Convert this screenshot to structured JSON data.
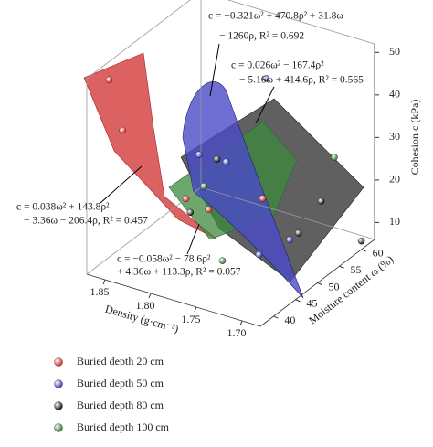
{
  "chart_data": {
    "type": "scatter3d",
    "x_label": "Density (g·cm⁻³)",
    "y_label": "Moisture content ω (%)",
    "z_label": "Cohesion c (kPa)",
    "xlim": [
      1.68,
      1.87
    ],
    "ylim": [
      37,
      63
    ],
    "zlim": [
      6,
      52
    ],
    "xticks": [
      {
        "value": 1.7,
        "label": "1.70"
      },
      1.75,
      {
        "value": 1.8,
        "label": "1.80"
      },
      1.85
    ],
    "yticks": [
      40,
      45,
      50,
      55,
      60
    ],
    "zticks": [
      10,
      20,
      30,
      40,
      50
    ],
    "series": [
      {
        "name": "Buried depth 20 cm",
        "color": "#d42a2a",
        "x": [
          1.86,
          1.85,
          1.8,
          1.78,
          1.74
        ],
        "y": [
          40,
          41,
          45,
          46,
          50
        ],
        "z": [
          50,
          38,
          22,
          20,
          22
        ]
      },
      {
        "name": "Buried depth 50 cm",
        "color": "#3b3bb8",
        "x": [
          1.76,
          1.8,
          1.78,
          1.72,
          1.72
        ],
        "y": [
          55,
          48,
          50,
          52,
          45
        ],
        "z": [
          45,
          30,
          28,
          12,
          14
        ]
      },
      {
        "name": "Buried depth 80 cm",
        "color": "#111111",
        "x": [
          1.79,
          1.8,
          1.7,
          1.68,
          1.72
        ],
        "y": [
          50,
          46,
          55,
          60,
          54
        ],
        "z": [
          28,
          18,
          20,
          8,
          12
        ]
      },
      {
        "name": "Buried depth 100 cm",
        "color": "#2e7d2e",
        "x": [
          1.79,
          1.7,
          1.76
        ],
        "y": [
          47,
          58,
          45
        ],
        "z": [
          24,
          28,
          10
        ]
      }
    ],
    "annotations": [
      [
        "c = −0.321ω² + 470.8ρ² + 31.8ω",
        "− 1260ρ, R² = 0.692"
      ],
      [
        "c = 0.026ω² − 167.4ρ²",
        "− 5.16ω + 414.6ρ, R² = 0.565"
      ],
      [
        "c = 0.038ω² + 143.8ρ²",
        "− 3.36ω − 206.4ρ, R² = 0.457"
      ],
      [
        "c = −0.058ω² − 78.6ρ²",
        "+ 4.36ω + 113.3ρ, R² = 0.057"
      ]
    ]
  }
}
